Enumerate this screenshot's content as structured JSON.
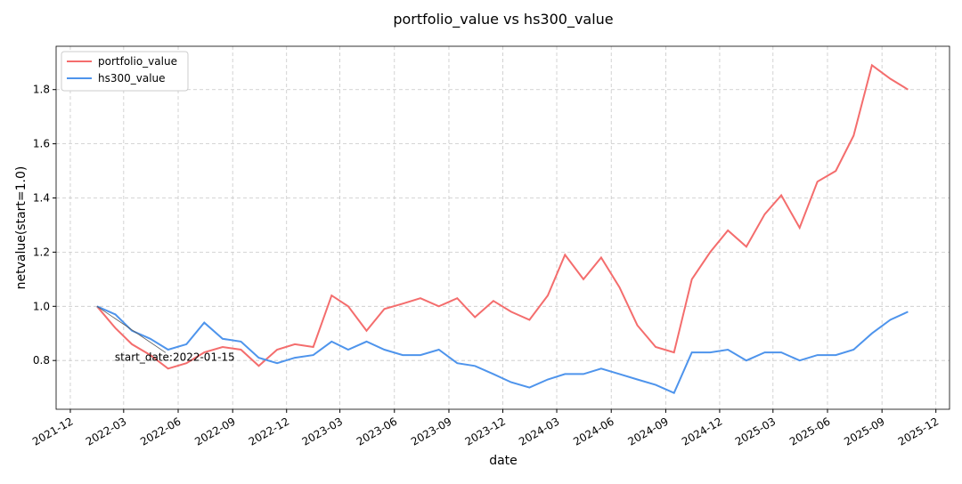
{
  "chart_data": {
    "type": "line",
    "title": "portfolio_value vs hs300_value",
    "xlabel": "date",
    "ylabel": "netvalue(start=1.0)",
    "x": [
      "2022-01",
      "2022-02",
      "2022-03",
      "2022-04",
      "2022-05",
      "2022-06",
      "2022-07",
      "2022-08",
      "2022-09",
      "2022-10",
      "2022-11",
      "2022-12",
      "2023-01",
      "2023-02",
      "2023-03",
      "2023-04",
      "2023-05",
      "2023-06",
      "2023-07",
      "2023-08",
      "2023-09",
      "2023-10",
      "2023-11",
      "2023-12",
      "2024-01",
      "2024-02",
      "2024-03",
      "2024-04",
      "2024-05",
      "2024-06",
      "2024-07",
      "2024-08",
      "2024-09",
      "2024-10",
      "2024-11",
      "2024-12",
      "2025-01",
      "2025-02",
      "2025-03",
      "2025-04",
      "2025-05",
      "2025-06",
      "2025-07",
      "2025-08",
      "2025-09",
      "2025-10"
    ],
    "series": [
      {
        "name": "portfolio_value",
        "color": "#f46d6d",
        "values": [
          1.0,
          0.92,
          0.86,
          0.82,
          0.77,
          0.79,
          0.83,
          0.85,
          0.84,
          0.78,
          0.84,
          0.86,
          0.85,
          1.04,
          1.0,
          0.91,
          0.99,
          1.01,
          1.03,
          1.0,
          1.03,
          0.96,
          1.02,
          0.98,
          0.95,
          1.04,
          1.19,
          1.1,
          1.18,
          1.07,
          0.93,
          0.85,
          0.83,
          1.1,
          1.2,
          1.28,
          1.22,
          1.34,
          1.41,
          1.29,
          1.46,
          1.5,
          1.63,
          1.89,
          1.84,
          1.8
        ]
      },
      {
        "name": "hs300_value",
        "color": "#4e94ec",
        "values": [
          1.0,
          0.97,
          0.91,
          0.88,
          0.84,
          0.86,
          0.94,
          0.88,
          0.87,
          0.81,
          0.79,
          0.81,
          0.82,
          0.87,
          0.84,
          0.87,
          0.84,
          0.82,
          0.82,
          0.84,
          0.79,
          0.78,
          0.75,
          0.72,
          0.7,
          0.73,
          0.75,
          0.75,
          0.77,
          0.75,
          0.73,
          0.71,
          0.68,
          0.83,
          0.83,
          0.84,
          0.8,
          0.83,
          0.83,
          0.8,
          0.82,
          0.82,
          0.84,
          0.9,
          0.95,
          0.98
        ]
      }
    ],
    "xlim": [
      "2021-11-07",
      "2025-12-24"
    ],
    "xticks": [
      "2021-12",
      "2022-03",
      "2022-06",
      "2022-09",
      "2022-12",
      "2023-03",
      "2023-06",
      "2023-09",
      "2023-12",
      "2024-03",
      "2024-06",
      "2024-09",
      "2024-12",
      "2025-03",
      "2025-06",
      "2025-09",
      "2025-12"
    ],
    "ylim": [
      0.62,
      1.96
    ],
    "yticks": [
      {
        "value": 0.8,
        "label": "0.8"
      },
      {
        "value": 1.0,
        "label": "1.0"
      },
      {
        "value": 1.2,
        "label": "1.2"
      },
      {
        "value": 1.4,
        "label": "1.4"
      },
      {
        "value": 1.6,
        "label": "1.6"
      },
      {
        "value": 1.8,
        "label": "1.8"
      }
    ],
    "grid": true,
    "legend": "upper-left",
    "annotation": {
      "text": "start_date:2022-01-15",
      "x": "2022-01",
      "y": 1.0
    }
  }
}
